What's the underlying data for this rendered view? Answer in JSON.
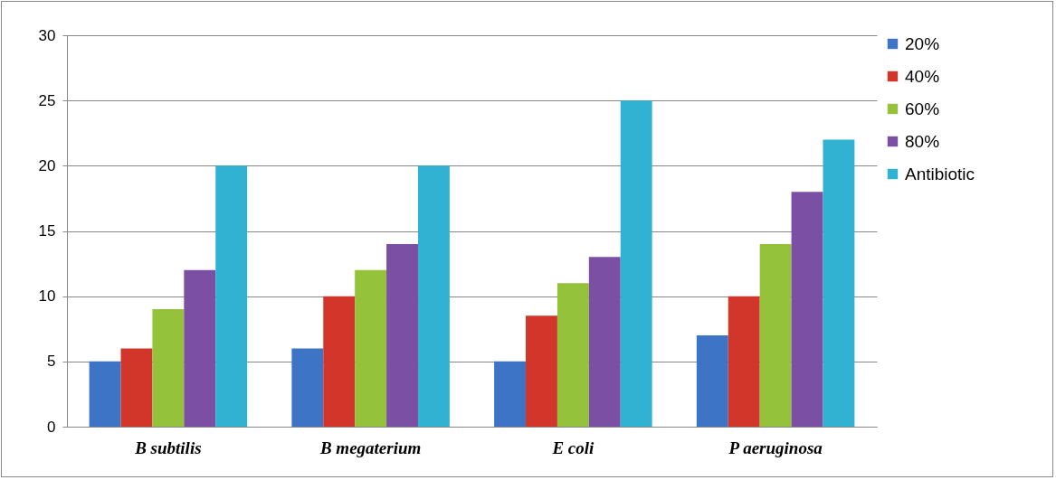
{
  "chart_data": {
    "type": "bar",
    "categories": [
      "B subtilis",
      "B megaterium",
      "E coli",
      "P aeruginosa"
    ],
    "series": [
      {
        "name": "20%",
        "color": "#3d74c6",
        "values": [
          5,
          6,
          5,
          7
        ]
      },
      {
        "name": "40%",
        "color": "#d2362b",
        "values": [
          6,
          10,
          8.5,
          10
        ]
      },
      {
        "name": "60%",
        "color": "#94c23a",
        "values": [
          9,
          12,
          11,
          14
        ]
      },
      {
        "name": "80%",
        "color": "#7b4fa3",
        "values": [
          12,
          14,
          13,
          18
        ]
      },
      {
        "name": "Antibiotic",
        "color": "#31b2d3",
        "values": [
          20,
          20,
          25,
          22
        ]
      }
    ],
    "ylim": [
      0,
      30
    ],
    "yticks": [
      0,
      5,
      10,
      15,
      20,
      25,
      30
    ],
    "grid": "y",
    "legend": "right"
  }
}
